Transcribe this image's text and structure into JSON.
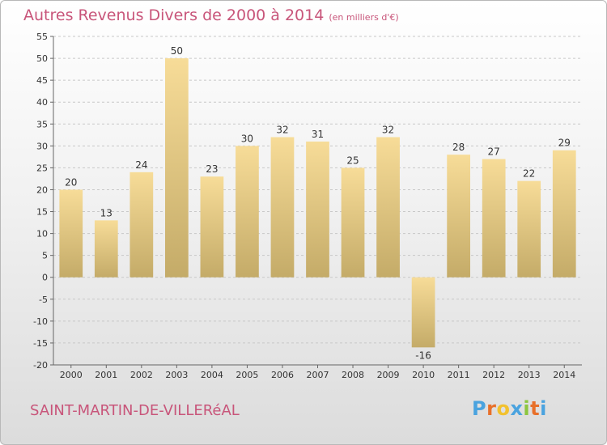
{
  "title": "Autres Revenus Divers de 2000 à 2014",
  "unit": "(en milliers d'€)",
  "city": "SAINT-MARTIN-DE-VILLERéAL",
  "logo": {
    "letters": [
      "P",
      "r",
      "o",
      "x",
      "i",
      "t",
      "i"
    ],
    "colors": [
      "#4aa3df",
      "#e8702a",
      "#f2c12e",
      "#4aa3df",
      "#8cc63f",
      "#e8702a",
      "#4aa3df"
    ]
  },
  "colors": {
    "title": "#c8557a",
    "bar_light": "#f7dc98",
    "bar_dark": "#c4ab68",
    "grid": "#c8c8c8"
  },
  "chart_data": {
    "type": "bar",
    "title": "Autres Revenus Divers de 2000 à 2014",
    "xlabel": "",
    "ylabel": "",
    "ylim": [
      -20,
      55
    ],
    "yticks": [
      -20,
      -15,
      -10,
      -5,
      0,
      5,
      10,
      15,
      20,
      25,
      30,
      35,
      40,
      45,
      50,
      55
    ],
    "grid": true,
    "categories": [
      "2000",
      "2001",
      "2002",
      "2003",
      "2004",
      "2005",
      "2006",
      "2007",
      "2008",
      "2009",
      "2010",
      "2011",
      "2012",
      "2013",
      "2014"
    ],
    "values": [
      20,
      13,
      24,
      50,
      23,
      30,
      32,
      31,
      25,
      32,
      -16,
      28,
      27,
      22,
      29
    ]
  }
}
